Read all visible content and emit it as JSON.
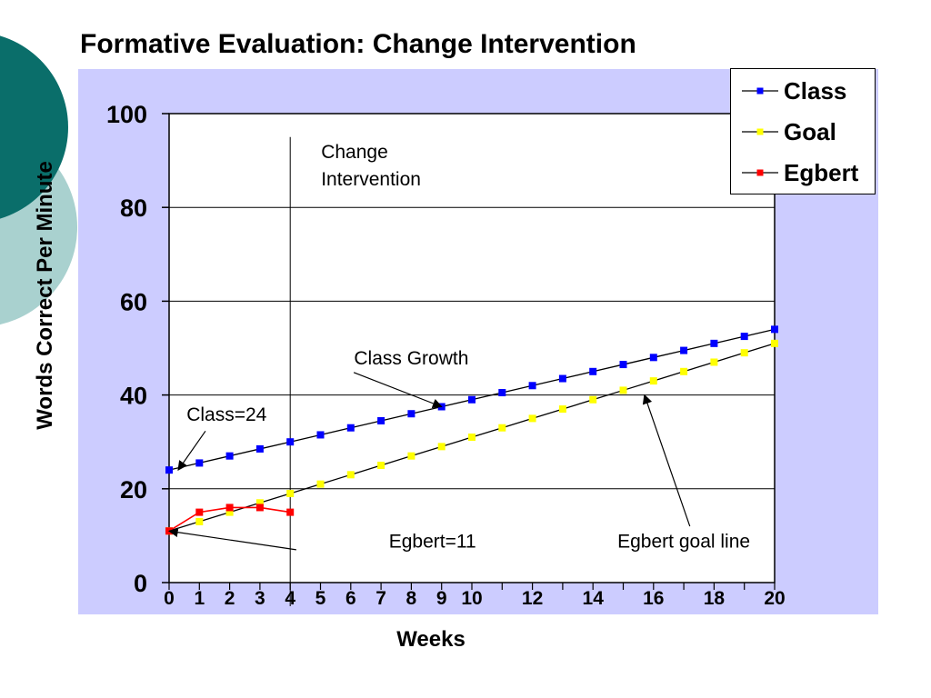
{
  "title": "Formative Evaluation: Change Intervention",
  "chart_data": {
    "type": "line",
    "xlabel": "Weeks",
    "ylabel": "Words Correct Per Minute",
    "xlim": [
      0,
      20
    ],
    "ylim": [
      0,
      100
    ],
    "y_ticks": [
      0,
      20,
      40,
      60,
      80,
      100
    ],
    "x_tick_labels": [
      0,
      1,
      2,
      3,
      4,
      5,
      6,
      7,
      8,
      9,
      10,
      12,
      14,
      16,
      18,
      20
    ],
    "grid": "horizontal",
    "legend_position": "top-right",
    "series": [
      {
        "name": "Class",
        "color": "#0000ff",
        "marker": "square",
        "x": [
          0,
          1,
          2,
          3,
          4,
          5,
          6,
          7,
          8,
          9,
          10,
          11,
          12,
          13,
          14,
          15,
          16,
          17,
          18,
          19,
          20
        ],
        "y": [
          24,
          25.5,
          27,
          28.5,
          30,
          31.5,
          33,
          34.5,
          36,
          37.5,
          39,
          40.5,
          42,
          43.5,
          45,
          46.5,
          48,
          49.5,
          51,
          52.5,
          54
        ]
      },
      {
        "name": "Goal",
        "color": "#ffff00",
        "marker": "square",
        "x": [
          0,
          1,
          2,
          3,
          4,
          5,
          6,
          7,
          8,
          9,
          10,
          11,
          12,
          13,
          14,
          15,
          16,
          17,
          18,
          19,
          20
        ],
        "y": [
          11,
          13,
          15,
          17,
          19,
          21,
          23,
          25,
          27,
          29,
          31,
          33,
          35,
          37,
          39,
          41,
          43,
          45,
          47,
          49,
          51
        ]
      },
      {
        "name": "Egbert",
        "color": "#ff0000",
        "marker": "square",
        "x": [
          0,
          1,
          2,
          3,
          4
        ],
        "y": [
          11,
          15,
          16,
          16,
          15
        ]
      }
    ],
    "intervention": {
      "x": 4,
      "label_lines": [
        "Change",
        "Intervention"
      ]
    },
    "annotations": [
      {
        "text": "Class Growth",
        "target": [
          9,
          37.5
        ],
        "text_pos": [
          8,
          46.5
        ],
        "text_anchor": "middle"
      },
      {
        "text": "Class=24",
        "target": [
          0.3,
          24
        ],
        "text_pos": [
          1.9,
          34.5
        ],
        "text_anchor": "middle"
      },
      {
        "text": "Egbert=11",
        "target": [
          0,
          11
        ],
        "text_pos": [
          8.7,
          7.5
        ],
        "text_anchor": "middle"
      },
      {
        "text": "Egbert goal line",
        "target": [
          15.7,
          40
        ],
        "text_pos": [
          17,
          7.5
        ],
        "text_anchor": "middle"
      }
    ]
  }
}
